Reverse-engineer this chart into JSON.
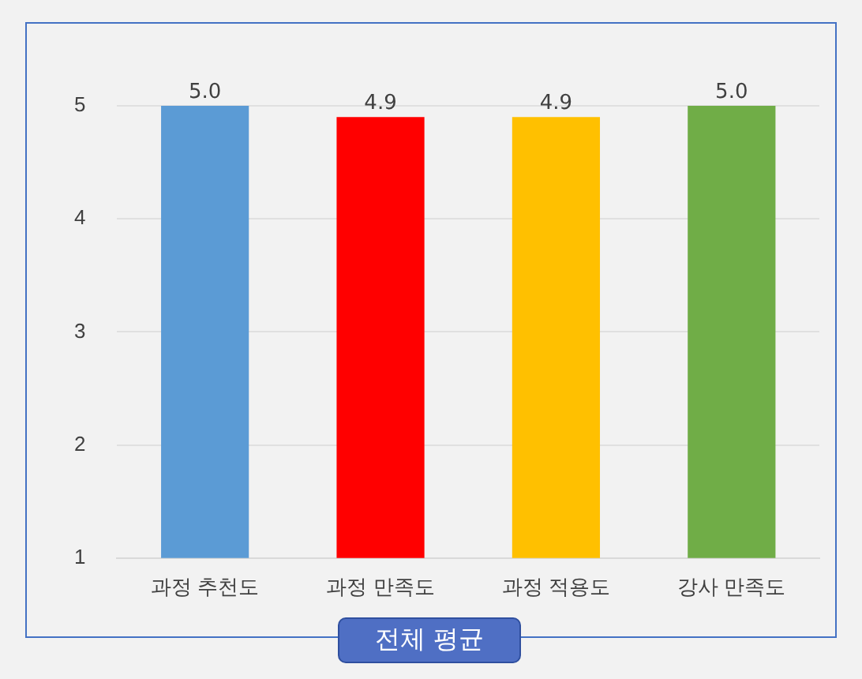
{
  "chart_data": {
    "type": "bar",
    "title": "전체 평균",
    "categories": [
      "과정 추천도",
      "과정 만족도",
      "과정 적용도",
      "강사 만족도"
    ],
    "values": [
      5.0,
      4.9,
      4.9,
      5.0
    ],
    "colors": [
      "#5b9bd5",
      "#ff0000",
      "#ffc000",
      "#70ad47"
    ],
    "value_labels": [
      "5.0",
      "4.9",
      "4.9",
      "5.0"
    ],
    "ylim": [
      1,
      5
    ],
    "yticks": [
      1,
      2,
      3,
      4,
      5
    ],
    "grid": "y",
    "legend": false
  }
}
